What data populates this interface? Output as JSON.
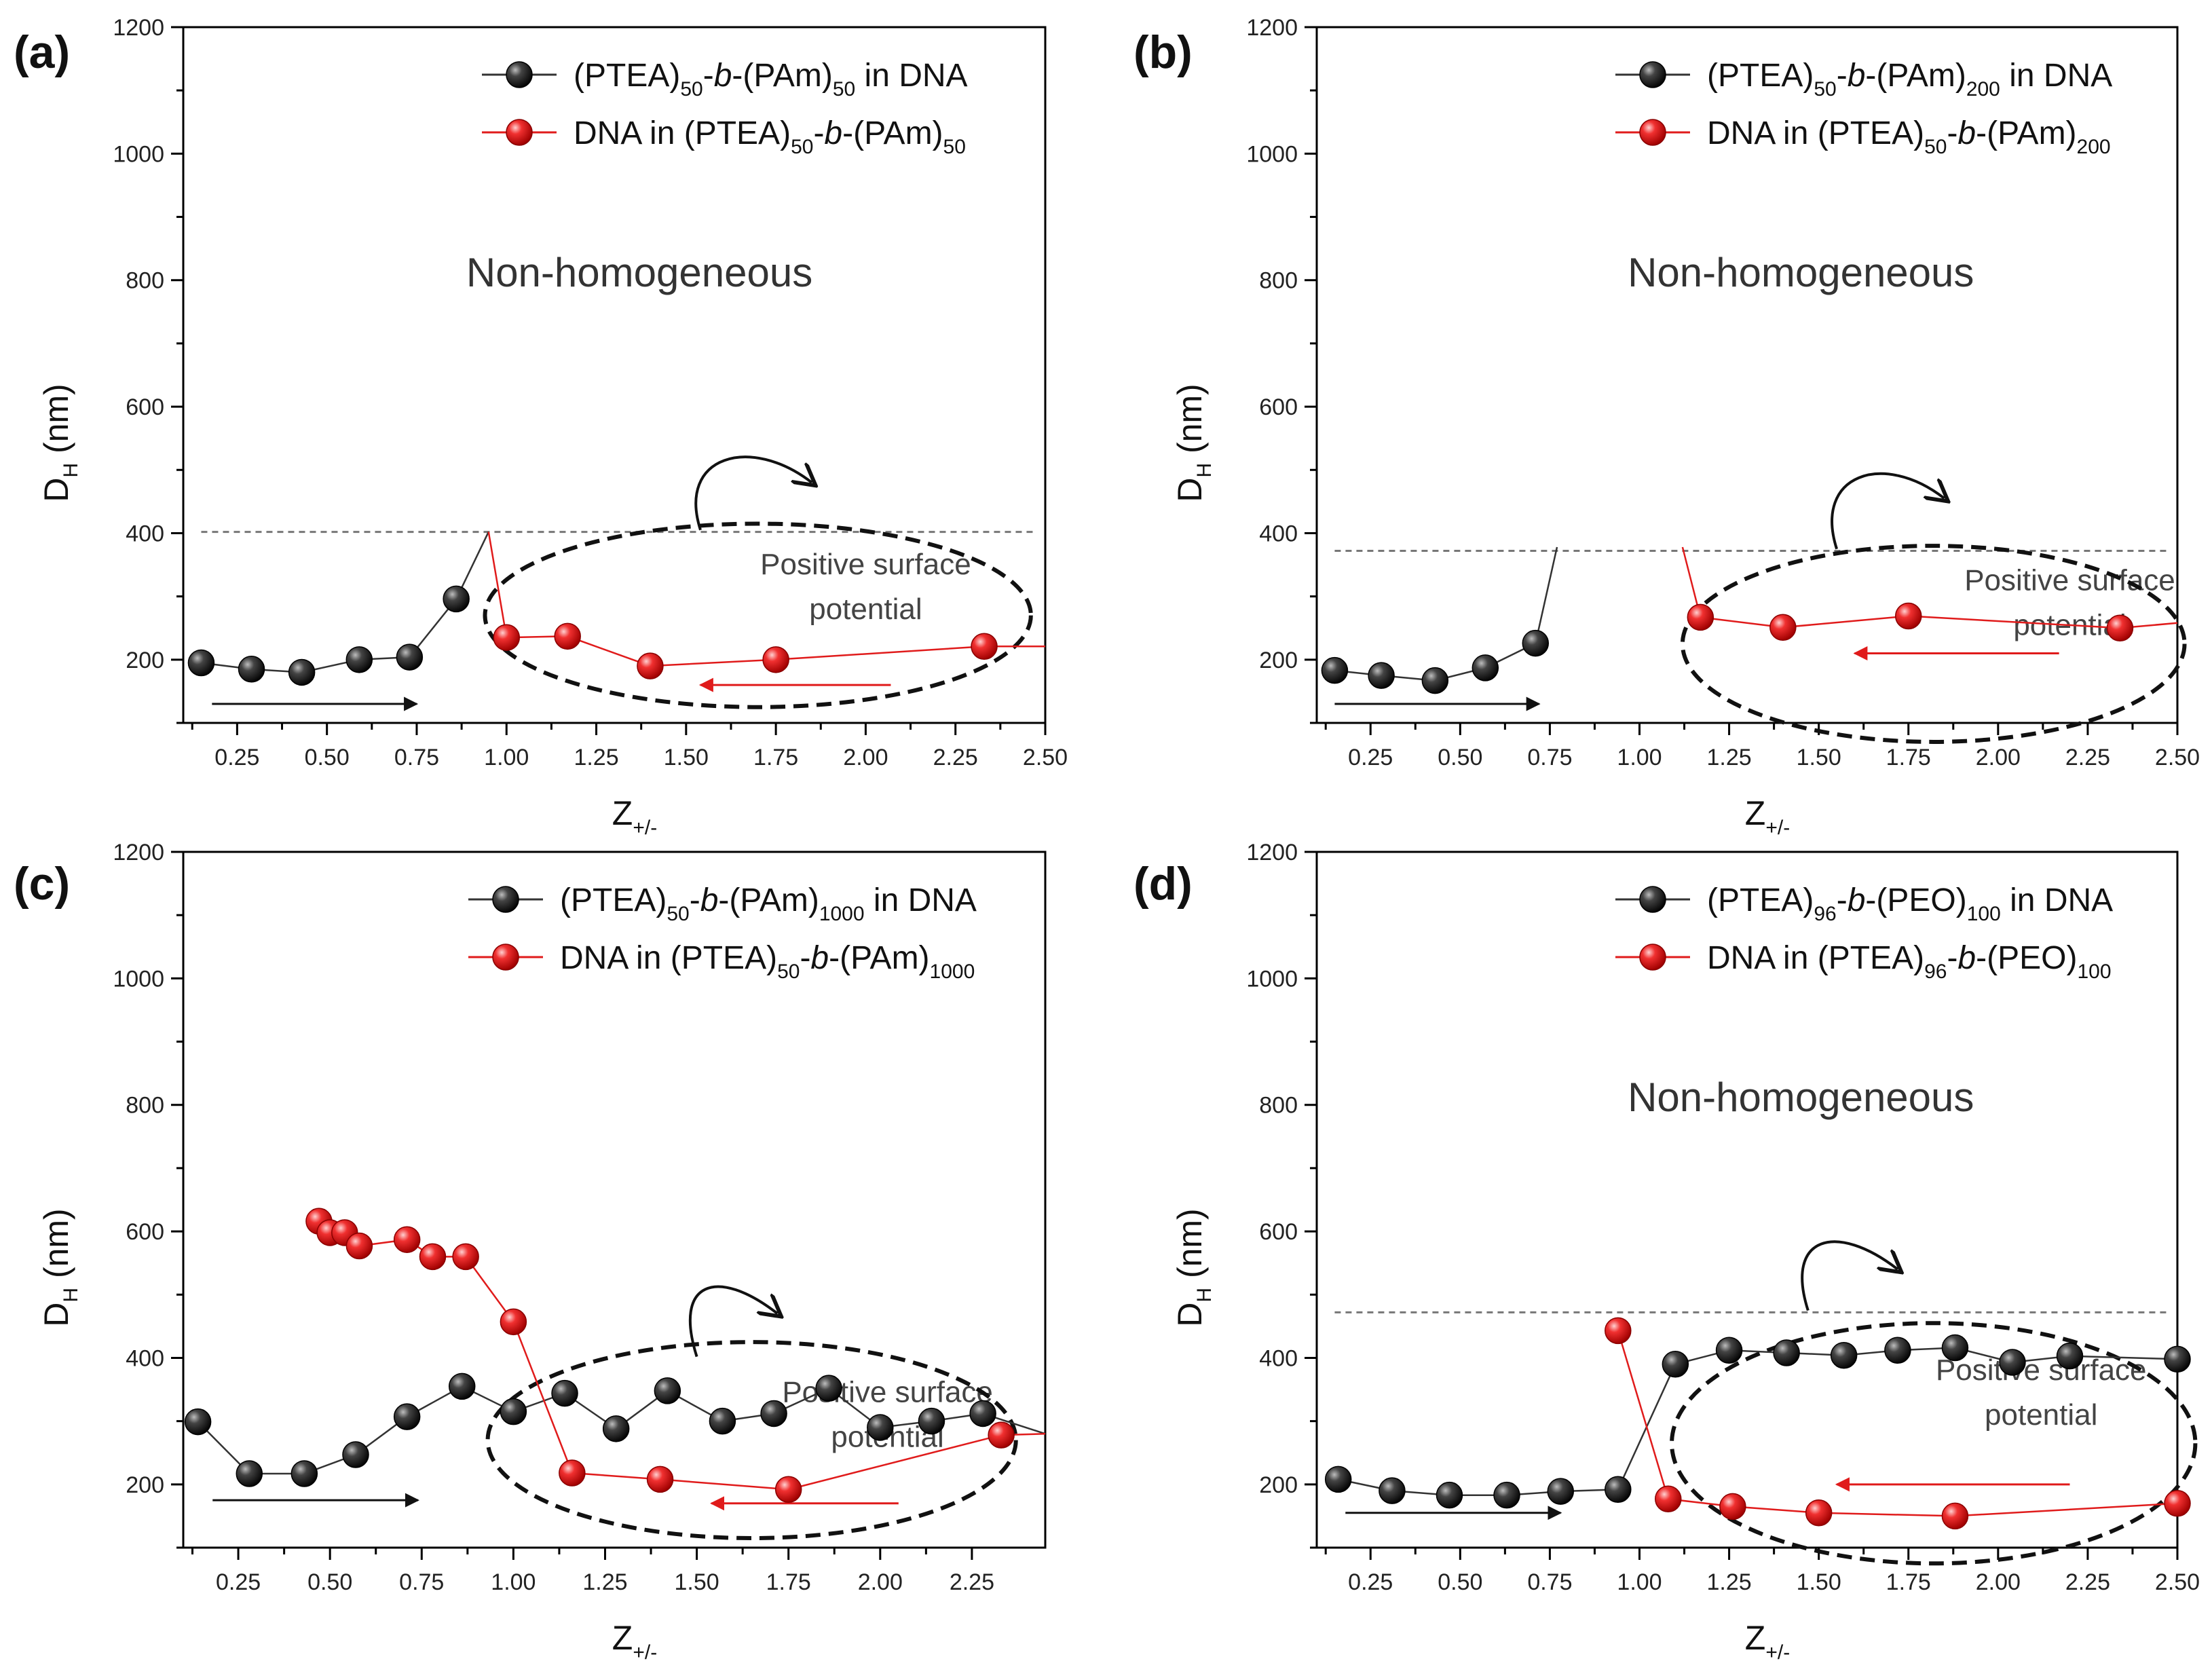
{
  "colors": {
    "black_series": "#1c1c1c",
    "red_series": "#e01b1b",
    "threshold": "#777777",
    "ellipse": "#111111"
  },
  "icons": [
    "right-arrow-icon",
    "left-arrow-icon",
    "curved-arrow-icon"
  ],
  "chart_data": [
    {
      "type": "line",
      "panel_label": "(a)",
      "xlabel": "Z",
      "xlabel_sub": "+/-",
      "ylabel": "D",
      "ylabel_sub": "H",
      "ylabel_unit": " (nm)",
      "xlim": [
        0.1,
        2.5
      ],
      "ylim": [
        100,
        1200
      ],
      "xticks": [
        0.25,
        0.5,
        0.75,
        1.0,
        1.25,
        1.5,
        1.75,
        2.0,
        2.25,
        2.5
      ],
      "xtick_labels": [
        "0.25",
        "0.50",
        "0.75",
        "1.00",
        "1.25",
        "1.50",
        "1.75",
        "2.00",
        "2.25",
        "2.50"
      ],
      "yticks": [
        200,
        400,
        600,
        800,
        1000,
        1200
      ],
      "ytick_labels": [
        "200",
        "400",
        "600",
        "800",
        "1000",
        "1200"
      ],
      "region_label": "Non-homogeneous",
      "region_label_pos": [
        1.37,
        790
      ],
      "threshold_y": 402,
      "annotation": {
        "line1": "Positive surface",
        "line2": "potential",
        "pos": [
          2.0,
          335
        ]
      },
      "curve_arrow": {
        "start": [
          1.54,
          405
        ],
        "end": [
          1.85,
          480
        ]
      },
      "ellipse": {
        "cx": 1.7,
        "cy": 270,
        "rx": 0.76,
        "ry": 145
      },
      "arrow_right": {
        "x1": 0.18,
        "x2": 0.75,
        "y": 130
      },
      "arrow_left": {
        "x1": 2.07,
        "x2": 1.54,
        "y": 160
      },
      "series": [
        {
          "name": "black",
          "color": "black",
          "legend": {
            "pre": "(PTEA)",
            "sub1": "50",
            "mid": "-b-(PAm)",
            "sub2": "50",
            "post": " in DNA"
          },
          "points": [
            [
              0.15,
              195
            ],
            [
              0.29,
              185
            ],
            [
              0.43,
              180
            ],
            [
              0.59,
              200
            ],
            [
              0.73,
              204
            ],
            [
              0.86,
              296
            ]
          ],
          "tail": [
            0.95,
            402
          ]
        },
        {
          "name": "red",
          "color": "red",
          "legend": {
            "pre": "DNA in (PTEA)",
            "sub1": "50",
            "mid": "-b-(PAm)",
            "sub2": "50",
            "post": ""
          },
          "points": [
            [
              1.0,
              235
            ],
            [
              1.17,
              237
            ],
            [
              1.4,
              190
            ],
            [
              1.75,
              200
            ],
            [
              2.33,
              221
            ]
          ],
          "head": [
            0.95,
            402
          ],
          "tail": [
            2.5,
            221
          ]
        }
      ]
    },
    {
      "type": "line",
      "panel_label": "(b)",
      "xlabel": "Z",
      "xlabel_sub": "+/-",
      "ylabel": "D",
      "ylabel_sub": "H",
      "ylabel_unit": " (nm)",
      "xlim": [
        0.1,
        2.5
      ],
      "ylim": [
        100,
        1200
      ],
      "xticks": [
        0.25,
        0.5,
        0.75,
        1.0,
        1.25,
        1.5,
        1.75,
        2.0,
        2.25,
        2.5
      ],
      "xtick_labels": [
        "0.25",
        "0.50",
        "0.75",
        "1.00",
        "1.25",
        "1.50",
        "1.75",
        "2.00",
        "2.25",
        "2.50"
      ],
      "yticks": [
        200,
        400,
        600,
        800,
        1000,
        1200
      ],
      "ytick_labels": [
        "200",
        "400",
        "600",
        "800",
        "1000",
        "1200"
      ],
      "region_label": "Non-homogeneous",
      "region_label_pos": [
        1.45,
        790
      ],
      "threshold_y": 372,
      "annotation": {
        "line1": "Positive surface",
        "line2": "potential",
        "pos": [
          2.2,
          310
        ]
      },
      "curve_arrow": {
        "start": [
          1.55,
          375
        ],
        "end": [
          1.85,
          455
        ]
      },
      "ellipse": {
        "cx": 1.82,
        "cy": 225,
        "rx": 0.7,
        "ry": 155
      },
      "arrow_right": {
        "x1": 0.15,
        "x2": 0.72,
        "y": 130
      },
      "arrow_left": {
        "x1": 2.17,
        "x2": 1.6,
        "y": 210
      },
      "series": [
        {
          "name": "black",
          "color": "black",
          "legend": {
            "pre": "(PTEA)",
            "sub1": "50",
            "mid": "-b-(PAm)",
            "sub2": "200",
            "post": " in DNA"
          },
          "points": [
            [
              0.15,
              183
            ],
            [
              0.28,
              175
            ],
            [
              0.43,
              167
            ],
            [
              0.57,
              187
            ],
            [
              0.71,
              226
            ]
          ],
          "tail": [
            0.77,
            378
          ]
        },
        {
          "name": "red",
          "color": "red",
          "legend": {
            "pre": "DNA in (PTEA)",
            "sub1": "50",
            "mid": "-b-(PAm)",
            "sub2": "200",
            "post": ""
          },
          "points": [
            [
              1.17,
              267
            ],
            [
              1.4,
              251
            ],
            [
              1.75,
              269
            ],
            [
              2.34,
              250
            ]
          ],
          "head": [
            1.12,
            378
          ],
          "tail": [
            2.5,
            258
          ]
        }
      ]
    },
    {
      "type": "line",
      "panel_label": "(c)",
      "xlabel": "Z",
      "xlabel_sub": "+/-",
      "ylabel": "D",
      "ylabel_sub": "H",
      "ylabel_unit": " (nm)",
      "xlim": [
        0.1,
        2.45
      ],
      "ylim": [
        100,
        1200
      ],
      "xticks": [
        0.25,
        0.5,
        0.75,
        1.0,
        1.25,
        1.5,
        1.75,
        2.0,
        2.25
      ],
      "xtick_labels": [
        "0.25",
        "0.50",
        "0.75",
        "1.00",
        "1.25",
        "1.50",
        "1.75",
        "2.00",
        "2.25"
      ],
      "yticks": [
        200,
        400,
        600,
        800,
        1000,
        1200
      ],
      "ytick_labels": [
        "200",
        "400",
        "600",
        "800",
        "1000",
        "1200"
      ],
      "threshold_y": null,
      "annotation": {
        "line1": "Positive surface",
        "line2": "potential",
        "pos": [
          2.02,
          330
        ]
      },
      "curve_arrow": {
        "start": [
          1.5,
          402
        ],
        "end": [
          1.72,
          470
        ]
      },
      "ellipse": {
        "cx": 1.65,
        "cy": 270,
        "rx": 0.72,
        "ry": 155
      },
      "arrow_right": {
        "x1": 0.18,
        "x2": 0.74,
        "y": 175
      },
      "arrow_left": {
        "x1": 2.05,
        "x2": 1.54,
        "y": 170
      },
      "series": [
        {
          "name": "black",
          "color": "black",
          "legend": {
            "pre": "(PTEA)",
            "sub1": "50",
            "mid": "-b-(PAm)",
            "sub2": "1000",
            "post": " in DNA"
          },
          "points": [
            [
              0.14,
              299
            ],
            [
              0.28,
              217
            ],
            [
              0.43,
              217
            ],
            [
              0.57,
              247
            ],
            [
              0.71,
              307
            ],
            [
              0.86,
              355
            ],
            [
              1.0,
              315
            ],
            [
              1.14,
              344
            ],
            [
              1.28,
              288
            ],
            [
              1.42,
              348
            ],
            [
              1.57,
              300
            ],
            [
              1.71,
              312
            ],
            [
              1.86,
              352
            ],
            [
              2.0,
              290
            ],
            [
              2.14,
              300
            ],
            [
              2.28,
              312
            ]
          ],
          "tail": [
            2.45,
            280
          ]
        },
        {
          "name": "red",
          "color": "red",
          "legend": {
            "pre": "DNA in (PTEA)",
            "sub1": "50",
            "mid": "-b-(PAm)",
            "sub2": "1000",
            "post": ""
          },
          "points": [
            [
              0.47,
              616
            ],
            [
              0.5,
              598
            ],
            [
              0.54,
              598
            ],
            [
              0.58,
              577
            ],
            [
              0.71,
              587
            ],
            [
              0.78,
              560
            ],
            [
              0.87,
              560
            ],
            [
              1.0,
              457
            ],
            [
              1.16,
              218
            ],
            [
              1.4,
              208
            ],
            [
              1.75,
              192
            ],
            [
              2.33,
              278
            ]
          ],
          "tail": [
            2.45,
            280
          ]
        }
      ]
    },
    {
      "type": "line",
      "panel_label": "(d)",
      "xlabel": "Z",
      "xlabel_sub": "+/-",
      "ylabel": "D",
      "ylabel_sub": "H",
      "ylabel_unit": " (nm)",
      "xlim": [
        0.1,
        2.5
      ],
      "ylim": [
        100,
        1200
      ],
      "xticks": [
        0.25,
        0.5,
        0.75,
        1.0,
        1.25,
        1.5,
        1.75,
        2.0,
        2.25,
        2.5
      ],
      "xtick_labels": [
        "0.25",
        "0.50",
        "0.75",
        "1.00",
        "1.25",
        "1.50",
        "1.75",
        "2.00",
        "2.25",
        "2.50"
      ],
      "yticks": [
        200,
        400,
        600,
        800,
        1000,
        1200
      ],
      "ytick_labels": [
        "200",
        "400",
        "600",
        "800",
        "1000",
        "1200"
      ],
      "region_label": "Non-homogeneous",
      "region_label_pos": [
        1.45,
        790
      ],
      "threshold_y": 472,
      "annotation": {
        "line1": "Positive surface",
        "line2": "potential",
        "pos": [
          2.12,
          365
        ]
      },
      "curve_arrow": {
        "start": [
          1.47,
          475
        ],
        "end": [
          1.72,
          540
        ]
      },
      "ellipse": {
        "cx": 1.82,
        "cy": 265,
        "rx": 0.73,
        "ry": 190
      },
      "arrow_right": {
        "x1": 0.18,
        "x2": 0.78,
        "y": 155
      },
      "arrow_left": {
        "x1": 2.2,
        "x2": 1.55,
        "y": 200
      },
      "series": [
        {
          "name": "black",
          "color": "black",
          "legend": {
            "pre": "(PTEA)",
            "sub1": "96",
            "mid": "-b-(PEO)",
            "sub2": "100",
            "post": " in DNA"
          },
          "points": [
            [
              0.16,
              208
            ],
            [
              0.31,
              190
            ],
            [
              0.47,
              183
            ],
            [
              0.63,
              183
            ],
            [
              0.78,
              189
            ],
            [
              0.94,
              192
            ],
            [
              1.1,
              390
            ],
            [
              1.25,
              412
            ],
            [
              1.41,
              408
            ],
            [
              1.57,
              404
            ],
            [
              1.72,
              412
            ],
            [
              1.88,
              416
            ],
            [
              2.04,
              393
            ],
            [
              2.2,
              403
            ],
            [
              2.5,
              398
            ]
          ]
        },
        {
          "name": "red",
          "color": "red",
          "legend": {
            "pre": "DNA in (PTEA)",
            "sub1": "96",
            "mid": "-b-(PEO)",
            "sub2": "100",
            "post": ""
          },
          "points": [
            [
              0.94,
              443
            ],
            [
              1.08,
              177
            ],
            [
              1.26,
              165
            ],
            [
              1.5,
              155
            ],
            [
              1.88,
              150
            ],
            [
              2.5,
              170
            ]
          ]
        }
      ]
    }
  ]
}
